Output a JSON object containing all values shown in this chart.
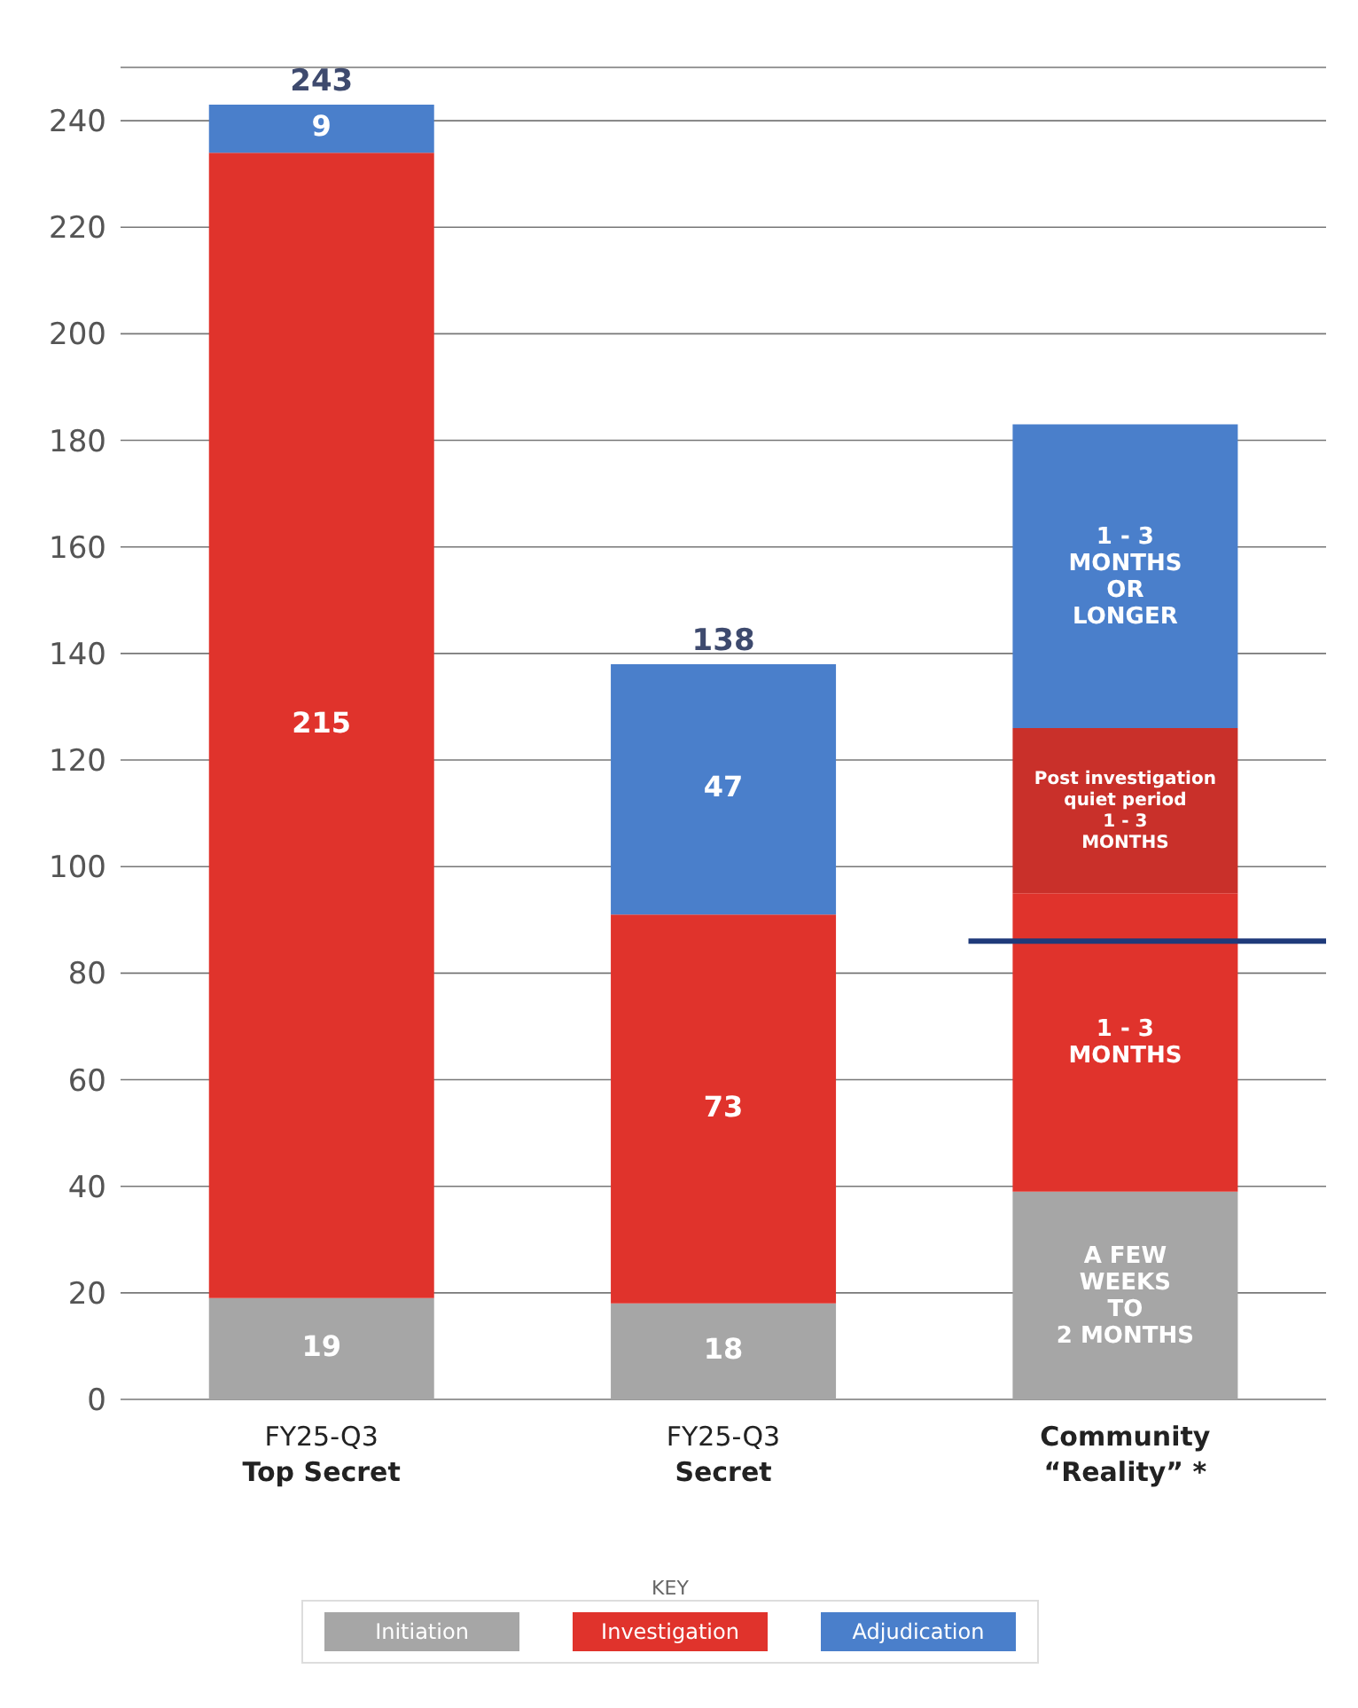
{
  "chart_data": {
    "type": "bar",
    "stacked": true,
    "categories": [
      "FY25-Q3\nTop Secret",
      "FY25-Q3\nSecret",
      "Community\n“Reality” *"
    ],
    "series": [
      {
        "name": "Initiation",
        "color": "#a6a6a6",
        "values": [
          19,
          18,
          39
        ],
        "value_labels": [
          "19",
          "18",
          null
        ]
      },
      {
        "name": "Investigation",
        "color": "#e0332c",
        "values": [
          215,
          73,
          56
        ],
        "value_labels": [
          "215",
          "73",
          null
        ]
      },
      {
        "color": "#c9302a",
        "values": [
          null,
          null,
          31
        ]
      },
      {
        "name": "Adjudication",
        "color": "#4a7fcb",
        "values": [
          9,
          47,
          57
        ],
        "value_labels": [
          "9",
          "47",
          null
        ]
      }
    ],
    "totals": [
      "243",
      "138",
      null
    ],
    "annotations": [
      "A FEW\nWEEKS\nTO\n2 MONTHS",
      "1 - 3\nMONTHS",
      "Post investigation\nquiet period\n1 - 3\nMONTHS",
      "1 - 3\nMONTHS\nOR\nLONGER"
    ],
    "ylim": [
      0,
      250
    ],
    "yticks": [
      0,
      20,
      40,
      60,
      80,
      100,
      120,
      140,
      160,
      180,
      200,
      220,
      240
    ],
    "grid": "y",
    "legend": "bottom",
    "legend_title": "KEY",
    "ref_lines": [
      {
        "axis": "y",
        "value": 86,
        "color": "#1f3a7a"
      }
    ]
  }
}
